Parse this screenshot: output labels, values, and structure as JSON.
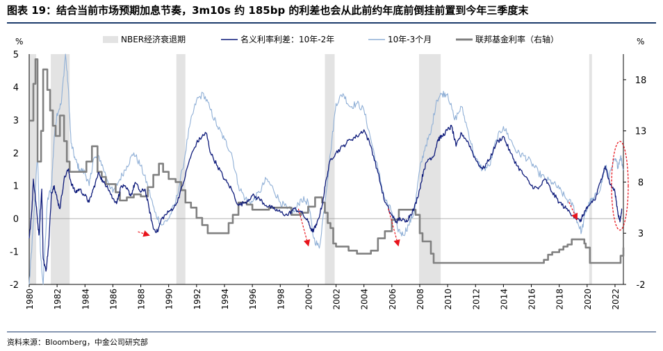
{
  "title": "图表 19：结合当前市场预期加息节奏，3m10s 约 185bp 的利差也会从此前约年底前倒挂前置到今年三季度末",
  "source": "资料来源：Bloomberg，中金公司研究部",
  "colors": {
    "recession": "#e3e3e3",
    "spread_10y2y": "#0d1a7a",
    "spread_10y3m": "#8fafd6",
    "fed_funds": "#808080",
    "annotation": "#e8141c",
    "title_rule": "#1b3a6b"
  },
  "chart_data": {
    "type": "line",
    "left_unit": "%",
    "right_unit": "%",
    "left_ylim": [
      -2,
      5
    ],
    "right_ylim": [
      -2,
      20.5
    ],
    "left_ticks": [
      "5",
      "4",
      "3",
      "2",
      "1",
      "0",
      "-1",
      "-2"
    ],
    "right_ticks": [
      "18",
      "13",
      "8",
      "3",
      "-2"
    ],
    "x_ticks": [
      "1980",
      "1982",
      "1984",
      "1986",
      "1988",
      "1990",
      "1992",
      "1994",
      "1996",
      "1998",
      "2000",
      "2002",
      "2004",
      "2006",
      "2008",
      "2010",
      "2012",
      "2014",
      "2016",
      "2018",
      "2020",
      "2022"
    ],
    "xlim": [
      1980,
      2022.6
    ],
    "legend": {
      "recession": "NBER经济衰退期",
      "spread_10y2y": "名义利率利差：10年-2年",
      "spread_10y3m": "10年-3个月",
      "fed_funds": "联邦基金利率（右轴）"
    },
    "recessions": [
      [
        1980.0,
        1980.5
      ],
      [
        1981.55,
        1982.9
      ],
      [
        1990.55,
        1991.2
      ],
      [
        2001.2,
        2001.9
      ],
      [
        2007.95,
        2009.5
      ],
      [
        2020.15,
        2020.35
      ]
    ],
    "series": [
      {
        "name": "名义利率利差：10年-2年",
        "axis": "left",
        "x": [
          1980.0,
          1980.2,
          1980.3,
          1980.5,
          1980.7,
          1980.9,
          1981.0,
          1981.2,
          1981.4,
          1981.6,
          1981.8,
          1982.0,
          1982.2,
          1982.5,
          1982.8,
          1983.0,
          1983.3,
          1983.6,
          1984.0,
          1984.3,
          1984.6,
          1985.0,
          1985.3,
          1985.6,
          1986.0,
          1986.3,
          1986.6,
          1987.0,
          1987.3,
          1987.6,
          1988.0,
          1988.3,
          1988.6,
          1988.9,
          1989.2,
          1989.5,
          1990.0,
          1990.5,
          1991.0,
          1991.5,
          1992.0,
          1992.4,
          1992.7,
          1993.0,
          1993.5,
          1994.0,
          1994.5,
          1995.0,
          1995.5,
          1996.0,
          1996.5,
          1997.0,
          1997.5,
          1998.0,
          1998.5,
          1999.0,
          1999.5,
          2000.0,
          2000.3,
          2000.6,
          2001.0,
          2001.3,
          2001.6,
          2002.0,
          2002.5,
          2003.0,
          2003.5,
          2004.0,
          2004.5,
          2005.0,
          2005.5,
          2006.0,
          2006.3,
          2006.6,
          2007.0,
          2007.3,
          2007.6,
          2008.0,
          2008.3,
          2008.6,
          2009.0,
          2009.3,
          2009.6,
          2010.0,
          2010.3,
          2010.6,
          2011.0,
          2011.5,
          2012.0,
          2012.5,
          2013.0,
          2013.5,
          2014.0,
          2014.5,
          2015.0,
          2015.5,
          2016.0,
          2016.5,
          2017.0,
          2017.5,
          2018.0,
          2018.5,
          2019.0,
          2019.5,
          2019.8,
          2020.0,
          2020.3,
          2020.6,
          2021.0,
          2021.3,
          2021.6,
          2022.0,
          2022.2,
          2022.35,
          2022.5
        ],
        "values": [
          -0.6,
          0.3,
          1.2,
          0.4,
          -0.5,
          0.9,
          -1.2,
          -1.6,
          -0.8,
          0.8,
          1.0,
          0.6,
          0.3,
          1.2,
          1.5,
          1.1,
          0.8,
          0.9,
          0.7,
          0.5,
          0.9,
          1.4,
          1.1,
          1.0,
          0.6,
          0.5,
          1.0,
          0.9,
          0.7,
          1.1,
          0.8,
          0.9,
          0.3,
          -0.3,
          -0.4,
          0.0,
          0.2,
          0.4,
          1.0,
          1.8,
          2.3,
          2.5,
          2.6,
          2.0,
          1.6,
          1.2,
          0.9,
          0.4,
          0.5,
          0.7,
          0.6,
          0.4,
          0.3,
          0.2,
          0.1,
          0.3,
          0.2,
          -0.1,
          -0.4,
          -0.2,
          0.4,
          1.2,
          1.8,
          2.0,
          2.2,
          2.4,
          2.5,
          2.7,
          2.2,
          1.4,
          0.5,
          0.1,
          -0.1,
          0.0,
          -0.1,
          0.1,
          0.3,
          0.9,
          1.5,
          1.8,
          1.9,
          2.4,
          2.5,
          2.7,
          2.8,
          2.2,
          2.6,
          2.3,
          1.8,
          1.5,
          1.8,
          2.3,
          2.5,
          2.0,
          1.6,
          1.3,
          1.0,
          0.9,
          1.2,
          0.8,
          0.5,
          0.3,
          0.1,
          -0.1,
          0.2,
          0.3,
          0.5,
          0.6,
          1.2,
          1.6,
          1.1,
          0.8,
          0.2,
          -0.1,
          0.3
        ]
      },
      {
        "name": "10年-3个月",
        "axis": "left",
        "x": [
          1980.0,
          1980.2,
          1980.4,
          1980.6,
          1980.8,
          1981.0,
          1981.3,
          1981.6,
          1981.8,
          1982.0,
          1982.3,
          1982.6,
          1982.8,
          1983.0,
          1983.3,
          1983.6,
          1984.0,
          1984.3,
          1984.6,
          1985.0,
          1985.5,
          1986.0,
          1986.5,
          1987.0,
          1987.5,
          1988.0,
          1988.5,
          1989.0,
          1989.5,
          1990.0,
          1990.5,
          1991.0,
          1991.5,
          1992.0,
          1992.5,
          1993.0,
          1993.5,
          1994.0,
          1994.5,
          1995.0,
          1995.5,
          1996.0,
          1996.5,
          1997.0,
          1997.5,
          1998.0,
          1998.5,
          1999.0,
          1999.5,
          2000.0,
          2000.4,
          2000.8,
          2001.2,
          2001.6,
          2002.0,
          2002.5,
          2003.0,
          2003.5,
          2004.0,
          2004.5,
          2005.0,
          2005.5,
          2006.0,
          2006.4,
          2006.8,
          2007.2,
          2007.6,
          2008.0,
          2008.4,
          2008.8,
          2009.2,
          2009.6,
          2010.0,
          2010.5,
          2011.0,
          2011.5,
          2012.0,
          2012.5,
          2013.0,
          2013.5,
          2014.0,
          2014.5,
          2015.0,
          2015.5,
          2016.0,
          2016.5,
          2017.0,
          2017.5,
          2018.0,
          2018.5,
          2019.0,
          2019.3,
          2019.6,
          2019.9,
          2020.2,
          2020.5,
          2021.0,
          2021.3,
          2021.6,
          2022.0,
          2022.2,
          2022.4,
          2022.6
        ],
        "values": [
          -2.0,
          -0.8,
          0.5,
          2.0,
          -1.0,
          -2.0,
          0.5,
          1.0,
          2.5,
          3.2,
          3.5,
          5.0,
          4.0,
          2.3,
          1.8,
          1.5,
          1.4,
          1.0,
          1.8,
          1.9,
          1.3,
          0.8,
          1.2,
          1.6,
          2.0,
          1.6,
          1.0,
          0.2,
          -0.2,
          0.0,
          0.5,
          1.5,
          2.8,
          3.6,
          3.8,
          3.3,
          2.8,
          2.4,
          2.0,
          1.0,
          0.6,
          0.5,
          0.8,
          1.2,
          0.9,
          0.5,
          0.3,
          0.2,
          0.6,
          0.5,
          -0.6,
          -0.9,
          0.5,
          2.0,
          3.5,
          3.8,
          3.4,
          3.5,
          3.3,
          2.4,
          1.5,
          0.6,
          0.2,
          -0.3,
          -0.5,
          -0.2,
          0.2,
          1.5,
          2.2,
          2.6,
          3.6,
          3.8,
          3.8,
          3.0,
          3.4,
          2.6,
          1.8,
          1.5,
          1.6,
          2.4,
          2.8,
          2.4,
          2.0,
          1.9,
          1.7,
          1.4,
          1.2,
          1.1,
          0.9,
          0.6,
          0.4,
          -0.1,
          -0.4,
          0.2,
          0.5,
          0.6,
          1.0,
          1.6,
          1.3,
          1.8,
          1.6,
          1.9,
          1.5
        ]
      },
      {
        "name": "联邦基金利率（右轴）",
        "axis": "right",
        "step": true,
        "x": [
          1980.0,
          1980.3,
          1980.45,
          1980.6,
          1980.85,
          1981.0,
          1981.3,
          1981.5,
          1981.7,
          1981.9,
          1982.2,
          1982.5,
          1982.7,
          1982.9,
          1983.5,
          1984.1,
          1984.5,
          1984.9,
          1985.2,
          1985.5,
          1986.2,
          1986.5,
          1987.0,
          1987.5,
          1988.0,
          1988.5,
          1988.9,
          1989.3,
          1989.6,
          1990.0,
          1990.5,
          1990.9,
          1991.2,
          1991.6,
          1992.0,
          1992.4,
          1992.8,
          1994.0,
          1994.3,
          1994.6,
          1995.0,
          1995.6,
          1996.0,
          1996.5,
          1997.2,
          1998.8,
          1999.5,
          2000.0,
          2000.5,
          2001.0,
          2001.2,
          2001.4,
          2001.6,
          2001.8,
          2002.0,
          2002.9,
          2003.5,
          2004.5,
          2005.0,
          2005.5,
          2006.0,
          2006.5,
          2007.5,
          2007.7,
          2008.0,
          2008.2,
          2008.8,
          2009.0,
          2015.9,
          2016.9,
          2017.2,
          2017.5,
          2018.0,
          2018.3,
          2018.6,
          2018.9,
          2019.6,
          2019.8,
          2019.9,
          2020.2,
          2022.2,
          2022.4,
          2022.6
        ],
        "values": [
          14.0,
          17.6,
          20.0,
          10.0,
          13.0,
          19.0,
          17.0,
          15.0,
          13.5,
          12.5,
          14.5,
          12.0,
          10.0,
          9.0,
          9.0,
          10.0,
          11.5,
          9.0,
          8.5,
          7.8,
          7.0,
          6.2,
          6.5,
          6.8,
          6.6,
          7.5,
          8.7,
          9.8,
          9.0,
          8.3,
          8.0,
          7.2,
          6.0,
          5.5,
          4.5,
          3.8,
          3.0,
          3.0,
          4.0,
          4.8,
          6.0,
          5.8,
          5.3,
          5.3,
          5.5,
          4.8,
          5.0,
          5.6,
          6.5,
          6.0,
          5.0,
          4.0,
          3.5,
          2.0,
          1.7,
          1.3,
          1.0,
          1.3,
          2.5,
          3.2,
          4.3,
          5.3,
          5.3,
          4.8,
          3.0,
          2.2,
          1.0,
          0.1,
          0.1,
          0.4,
          0.9,
          1.15,
          1.4,
          1.7,
          1.9,
          2.4,
          2.4,
          2.0,
          1.6,
          0.1,
          0.1,
          0.8,
          1.6
        ]
      }
    ],
    "annotation_arrows": [
      {
        "from": [
          1987.8,
          -0.4
        ],
        "to": [
          1988.55,
          -0.5
        ]
      },
      {
        "from": [
          1999.3,
          0.3
        ],
        "to": [
          2000.0,
          -0.8
        ]
      },
      {
        "from": [
          2005.75,
          0.3
        ],
        "to": [
          2006.45,
          -0.8
        ]
      },
      {
        "from": [
          2018.7,
          0.5
        ],
        "to": [
          2019.25,
          0.0
        ]
      }
    ],
    "annotation_ellipse": {
      "x": 2022.35,
      "y": 1.0
    }
  }
}
